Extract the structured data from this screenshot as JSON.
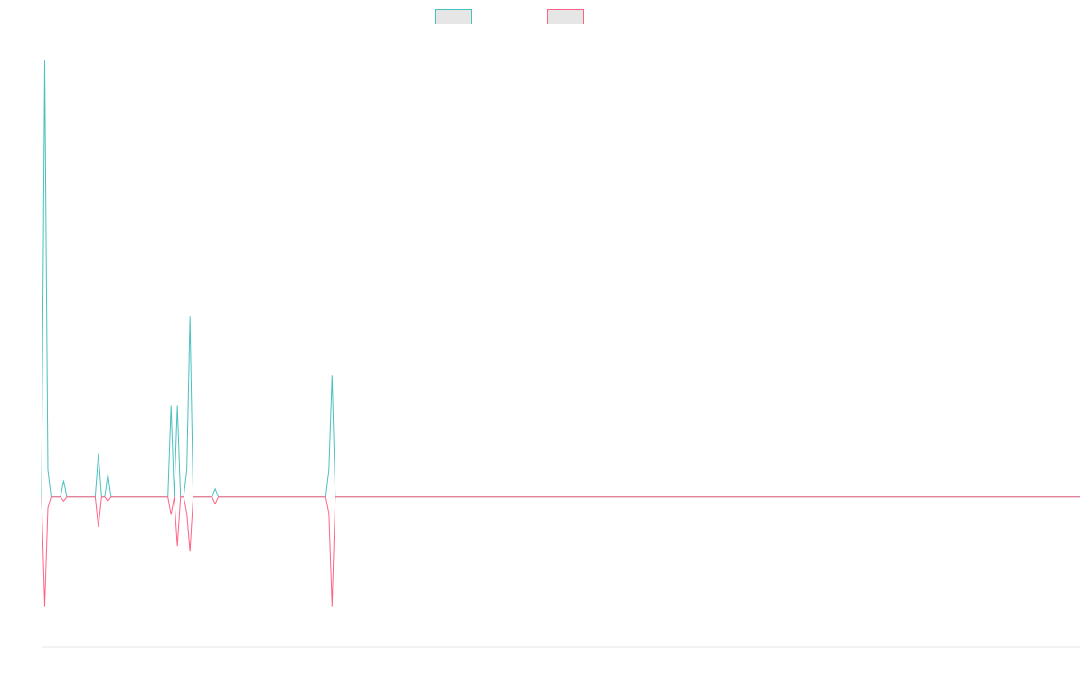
{
  "chart_data": {
    "type": "line",
    "title": "",
    "xlabel": "",
    "ylabel": "",
    "legend_position": "top-center",
    "grid": false,
    "x_count": 330,
    "ylim": [
      -110,
      340
    ],
    "series": [
      {
        "color": "#4bc0c0",
        "legend_fill": "#e6e6e6",
        "points": [
          [
            0,
            0
          ],
          [
            1,
            320
          ],
          [
            2,
            20
          ],
          [
            3,
            0
          ],
          [
            4,
            0
          ],
          [
            5,
            0
          ],
          [
            6,
            0
          ],
          [
            7,
            12
          ],
          [
            8,
            0
          ],
          [
            9,
            0
          ],
          [
            10,
            0
          ],
          [
            11,
            0
          ],
          [
            12,
            0
          ],
          [
            13,
            0
          ],
          [
            14,
            0
          ],
          [
            15,
            0
          ],
          [
            16,
            0
          ],
          [
            17,
            0
          ],
          [
            18,
            32
          ],
          [
            19,
            0
          ],
          [
            20,
            0
          ],
          [
            21,
            17
          ],
          [
            22,
            0
          ],
          [
            23,
            0
          ],
          [
            24,
            0
          ],
          [
            25,
            0
          ],
          [
            26,
            0
          ],
          [
            27,
            0
          ],
          [
            28,
            0
          ],
          [
            29,
            0
          ],
          [
            30,
            0
          ],
          [
            31,
            0
          ],
          [
            32,
            0
          ],
          [
            33,
            0
          ],
          [
            34,
            0
          ],
          [
            35,
            0
          ],
          [
            36,
            0
          ],
          [
            37,
            0
          ],
          [
            38,
            0
          ],
          [
            39,
            0
          ],
          [
            40,
            0
          ],
          [
            41,
            67
          ],
          [
            42,
            0
          ],
          [
            43,
            67
          ],
          [
            44,
            0
          ],
          [
            45,
            0
          ],
          [
            46,
            20
          ],
          [
            47,
            132
          ],
          [
            48,
            0
          ],
          [
            49,
            0
          ],
          [
            50,
            0
          ],
          [
            51,
            0
          ],
          [
            52,
            0
          ],
          [
            53,
            0
          ],
          [
            54,
            0
          ],
          [
            55,
            6
          ],
          [
            56,
            0
          ],
          [
            57,
            0
          ],
          [
            58,
            0
          ],
          [
            59,
            0
          ],
          [
            60,
            0
          ],
          [
            61,
            0
          ],
          [
            62,
            0
          ],
          [
            63,
            0
          ],
          [
            64,
            0
          ],
          [
            65,
            0
          ],
          [
            66,
            0
          ],
          [
            67,
            0
          ],
          [
            68,
            0
          ],
          [
            69,
            0
          ],
          [
            70,
            0
          ],
          [
            71,
            0
          ],
          [
            72,
            0
          ],
          [
            73,
            0
          ],
          [
            74,
            0
          ],
          [
            75,
            0
          ],
          [
            76,
            0
          ],
          [
            77,
            0
          ],
          [
            78,
            0
          ],
          [
            79,
            0
          ],
          [
            80,
            0
          ],
          [
            81,
            0
          ],
          [
            82,
            0
          ],
          [
            83,
            0
          ],
          [
            84,
            0
          ],
          [
            85,
            0
          ],
          [
            86,
            0
          ],
          [
            87,
            0
          ],
          [
            88,
            0
          ],
          [
            89,
            0
          ],
          [
            90,
            0
          ],
          [
            91,
            20
          ],
          [
            92,
            89
          ],
          [
            93,
            0
          ],
          [
            329,
            0
          ]
        ]
      },
      {
        "color": "#ff6384",
        "legend_fill": "#e6e6e6",
        "points": [
          [
            0,
            0
          ],
          [
            1,
            -80
          ],
          [
            2,
            -8
          ],
          [
            3,
            0
          ],
          [
            4,
            0
          ],
          [
            5,
            0
          ],
          [
            6,
            0
          ],
          [
            7,
            -3
          ],
          [
            8,
            0
          ],
          [
            9,
            0
          ],
          [
            10,
            0
          ],
          [
            11,
            0
          ],
          [
            12,
            0
          ],
          [
            13,
            0
          ],
          [
            14,
            0
          ],
          [
            15,
            0
          ],
          [
            16,
            0
          ],
          [
            17,
            0
          ],
          [
            18,
            -22
          ],
          [
            19,
            0
          ],
          [
            20,
            0
          ],
          [
            21,
            -3
          ],
          [
            22,
            0
          ],
          [
            23,
            0
          ],
          [
            24,
            0
          ],
          [
            25,
            0
          ],
          [
            26,
            0
          ],
          [
            27,
            0
          ],
          [
            28,
            0
          ],
          [
            29,
            0
          ],
          [
            30,
            0
          ],
          [
            31,
            0
          ],
          [
            32,
            0
          ],
          [
            33,
            0
          ],
          [
            34,
            0
          ],
          [
            35,
            0
          ],
          [
            36,
            0
          ],
          [
            37,
            0
          ],
          [
            38,
            0
          ],
          [
            39,
            0
          ],
          [
            40,
            0
          ],
          [
            41,
            -13
          ],
          [
            42,
            0
          ],
          [
            43,
            -36
          ],
          [
            44,
            0
          ],
          [
            45,
            0
          ],
          [
            46,
            -12
          ],
          [
            47,
            -40
          ],
          [
            48,
            0
          ],
          [
            49,
            0
          ],
          [
            50,
            0
          ],
          [
            51,
            0
          ],
          [
            52,
            0
          ],
          [
            53,
            0
          ],
          [
            54,
            0
          ],
          [
            55,
            -5
          ],
          [
            56,
            0
          ],
          [
            57,
            0
          ],
          [
            58,
            0
          ],
          [
            59,
            0
          ],
          [
            60,
            0
          ],
          [
            61,
            0
          ],
          [
            62,
            0
          ],
          [
            63,
            0
          ],
          [
            64,
            0
          ],
          [
            65,
            0
          ],
          [
            66,
            0
          ],
          [
            67,
            0
          ],
          [
            68,
            0
          ],
          [
            69,
            0
          ],
          [
            70,
            0
          ],
          [
            71,
            0
          ],
          [
            72,
            0
          ],
          [
            73,
            0
          ],
          [
            74,
            0
          ],
          [
            75,
            0
          ],
          [
            76,
            0
          ],
          [
            77,
            0
          ],
          [
            78,
            0
          ],
          [
            79,
            0
          ],
          [
            80,
            0
          ],
          [
            81,
            0
          ],
          [
            82,
            0
          ],
          [
            83,
            0
          ],
          [
            84,
            0
          ],
          [
            85,
            0
          ],
          [
            86,
            0
          ],
          [
            87,
            0
          ],
          [
            88,
            0
          ],
          [
            89,
            0
          ],
          [
            90,
            0
          ],
          [
            91,
            -12
          ],
          [
            92,
            -80
          ],
          [
            93,
            0
          ],
          [
            329,
            0
          ]
        ]
      }
    ]
  }
}
